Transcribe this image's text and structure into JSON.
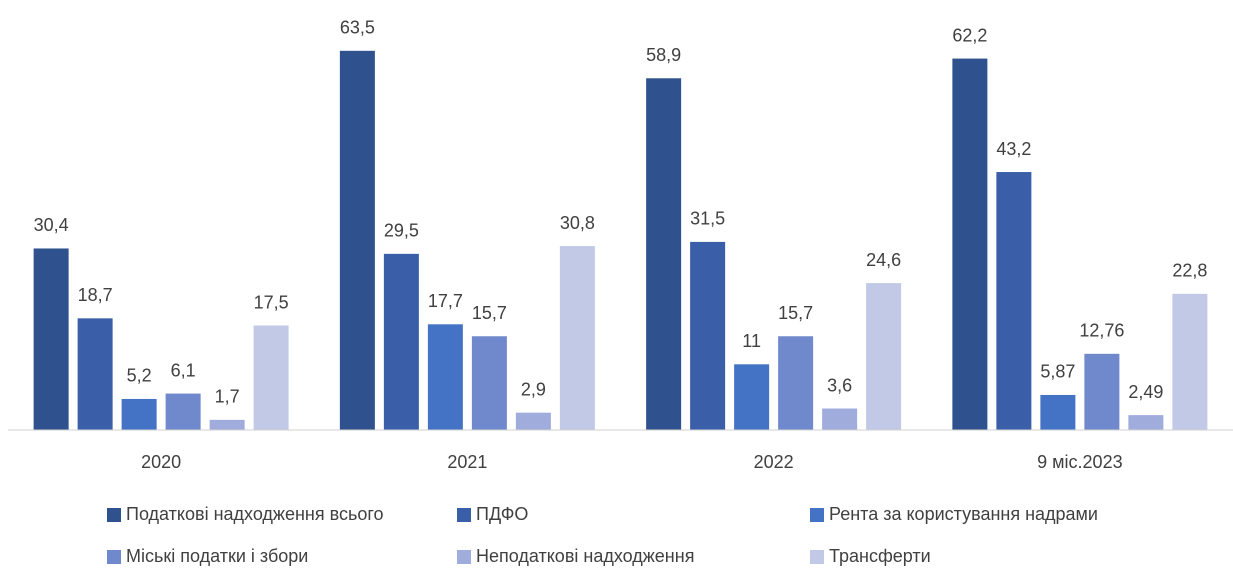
{
  "chart_data": {
    "type": "bar",
    "categories": [
      "2020",
      "2021",
      "2022",
      "9 міс.2023"
    ],
    "series": [
      {
        "name": "Податкові надходження  всього",
        "color": "#2f528f",
        "values": [
          30.4,
          63.5,
          58.9,
          62.2
        ],
        "value_labels": [
          "30,4",
          "63,5",
          "58,9",
          "62,2"
        ]
      },
      {
        "name": "ПДФО",
        "color": "#3a5ea8",
        "values": [
          18.7,
          29.5,
          31.5,
          43.2
        ],
        "value_labels": [
          "18,7",
          "29,5",
          "31,5",
          "43,2"
        ]
      },
      {
        "name": "Рента за користування надрами",
        "color": "#4472c4",
        "values": [
          5.2,
          17.7,
          11,
          5.87
        ],
        "value_labels": [
          "5,2",
          "17,7",
          "11",
          "5,87"
        ]
      },
      {
        "name": "Міські податки і збори",
        "color": "#7089cc",
        "values": [
          6.1,
          15.7,
          15.7,
          12.76
        ],
        "value_labels": [
          "6,1",
          "15,7",
          "15,7",
          "12,76"
        ]
      },
      {
        "name": "Неподаткові надходження",
        "color": "#a0acdc",
        "values": [
          1.7,
          2.9,
          3.6,
          2.49
        ],
        "value_labels": [
          "1,7",
          "2,9",
          "3,6",
          "2,49"
        ]
      },
      {
        "name": "Трансферти",
        "color": "#c1c9e6",
        "values": [
          17.5,
          30.8,
          24.6,
          22.8
        ],
        "value_labels": [
          "17,5",
          "30,8",
          "24,6",
          "22,8"
        ]
      }
    ],
    "ylim": [
      0,
      70
    ]
  }
}
